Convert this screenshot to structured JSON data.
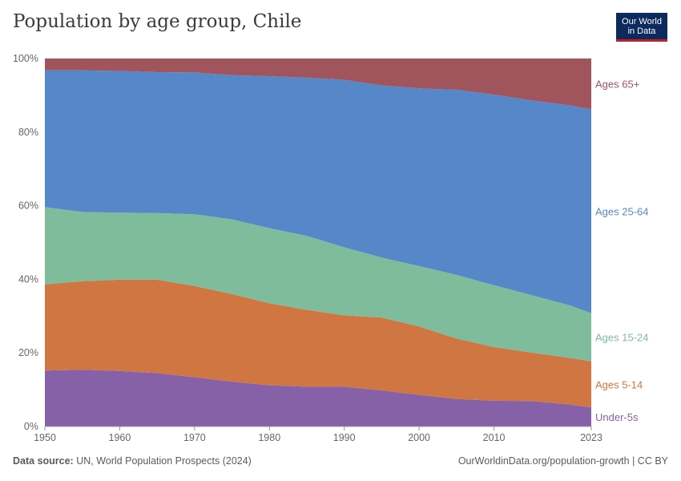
{
  "header": {
    "title": "Population by age group, Chile",
    "logo_line1": "Our World",
    "logo_line2": "in Data"
  },
  "footer": {
    "source_label": "Data source:",
    "source_text": "UN, World Population Prospects (2024)",
    "attribution": "OurWorldinData.org/population-growth | CC BY"
  },
  "chart_data": {
    "type": "area",
    "stacked": true,
    "normalized": true,
    "title": "Population by age group, Chile",
    "x": [
      1950,
      1955,
      1960,
      1965,
      1970,
      1975,
      1980,
      1985,
      1990,
      1995,
      2000,
      2005,
      2010,
      2015,
      2020,
      2023
    ],
    "x_ticks": [
      1950,
      1960,
      1970,
      1980,
      1990,
      2000,
      2010,
      2023
    ],
    "y_ticks": [
      "0%",
      "20%",
      "40%",
      "60%",
      "80%",
      "100%"
    ],
    "ylim": [
      0,
      100
    ],
    "series": [
      {
        "name": "Under-5s",
        "color": "#8661a8",
        "values": [
          15.2,
          15.4,
          15.1,
          14.5,
          13.4,
          12.2,
          11.2,
          10.8,
          10.8,
          9.8,
          8.6,
          7.5,
          7.0,
          6.9,
          6.0,
          5.2
        ]
      },
      {
        "name": "Ages 5-14",
        "color": "#cf7642",
        "values": [
          23.4,
          24.1,
          24.8,
          25.4,
          24.8,
          23.8,
          22.3,
          20.9,
          19.4,
          19.8,
          18.6,
          16.4,
          14.6,
          13.2,
          12.7,
          12.5
        ]
      },
      {
        "name": "Ages 15-24",
        "color": "#7fbc9c",
        "values": [
          21.0,
          18.8,
          18.2,
          18.1,
          19.5,
          20.3,
          20.4,
          20.1,
          18.5,
          16.3,
          16.4,
          17.3,
          16.8,
          15.6,
          14.3,
          13.1
        ]
      },
      {
        "name": "Ages 25-64",
        "color": "#5687c8",
        "values": [
          37.2,
          38.5,
          38.5,
          38.3,
          38.5,
          39.2,
          41.3,
          43.0,
          45.5,
          46.8,
          48.3,
          50.3,
          51.8,
          52.9,
          54.3,
          55.4
        ]
      },
      {
        "name": "Ages 65+",
        "color": "#a0545c",
        "values": [
          3.2,
          3.2,
          3.4,
          3.7,
          3.8,
          4.5,
          4.8,
          5.2,
          5.8,
          7.3,
          8.1,
          8.5,
          9.8,
          11.4,
          12.7,
          13.8
        ]
      }
    ]
  }
}
